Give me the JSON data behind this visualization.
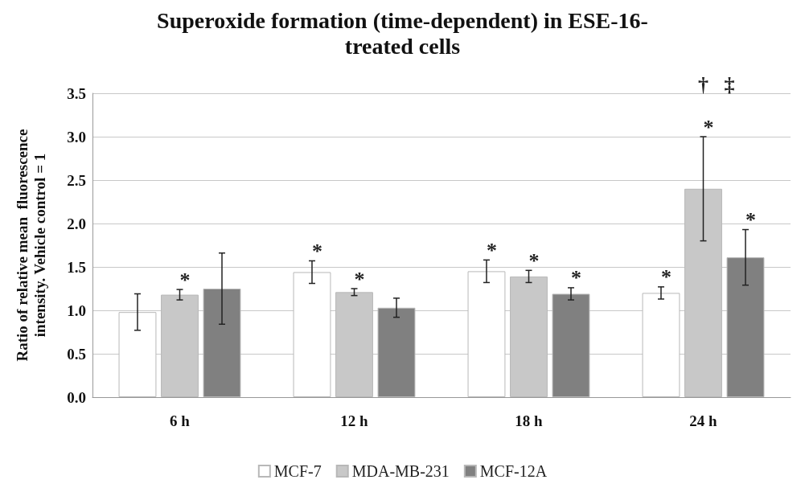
{
  "chart_data": {
    "type": "bar",
    "title": "Superoxide formation (time-dependent) in ESE-16-\ntreated cells",
    "ylabel": "Ratio of relative mean  fluorescence\nintensity. Vehicle control = 1",
    "categories": [
      "6 h",
      "12 h",
      "18 h",
      "24 h"
    ],
    "series": [
      {
        "name": "MCF-7",
        "color": "#ffffff",
        "values": [
          0.98,
          1.44,
          1.45,
          1.2
        ],
        "errors": [
          0.21,
          0.13,
          0.13,
          0.07
        ],
        "value_labels": [
          null,
          "*",
          "*",
          "*"
        ]
      },
      {
        "name": "MDA-MB-231",
        "color": "#c8c8c8",
        "values": [
          1.18,
          1.21,
          1.39,
          2.4
        ],
        "errors": [
          0.06,
          0.04,
          0.07,
          0.6
        ],
        "value_labels": [
          "*",
          "*",
          "*",
          "*"
        ]
      },
      {
        "name": "MCF-12A",
        "color": "#808080",
        "values": [
          1.25,
          1.03,
          1.19,
          1.61
        ],
        "errors": [
          0.41,
          0.11,
          0.07,
          0.32
        ],
        "value_labels": [
          null,
          null,
          "*",
          "*"
        ]
      }
    ],
    "annotations": [
      "†   ‡"
    ],
    "ylim": [
      0,
      3.5
    ],
    "yticks": [
      {
        "value": 0,
        "label": "0.0"
      },
      0.5,
      {
        "value": 1,
        "label": "1.0"
      },
      1.5,
      {
        "value": 2,
        "label": "2.0"
      },
      2.5,
      {
        "value": 3,
        "label": "3.0"
      },
      3.5
    ],
    "grid": "y",
    "legend": "bottom"
  }
}
